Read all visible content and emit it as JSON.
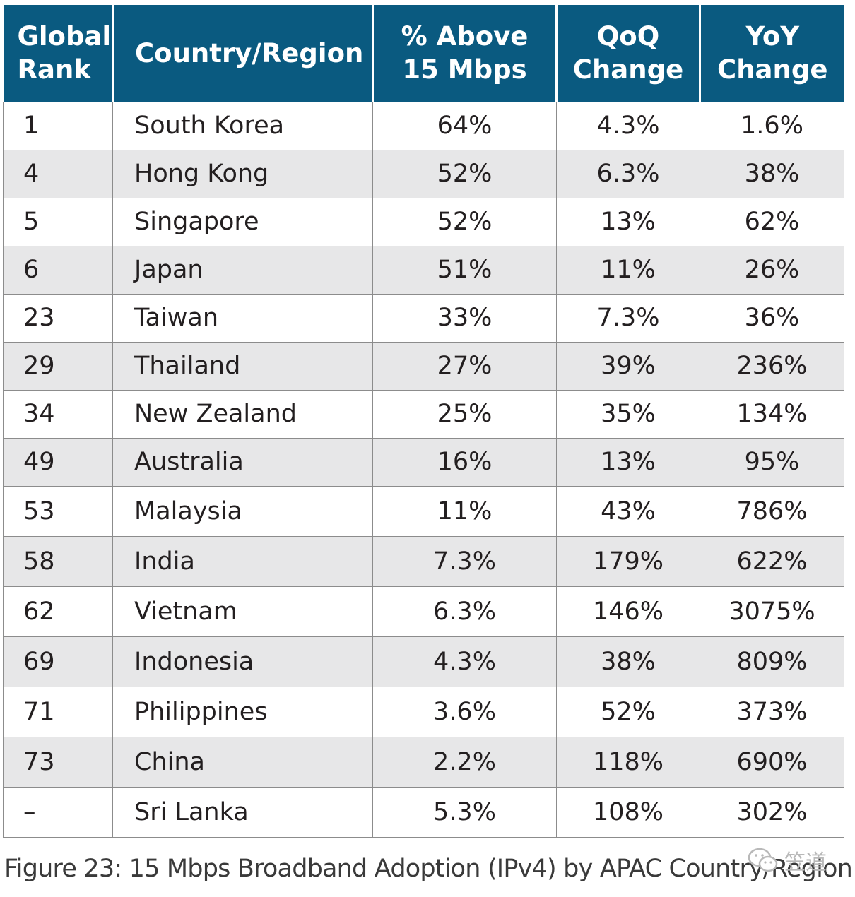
{
  "table": {
    "headers": [
      "Global\nRank",
      "Country/Region",
      "% Above\n15 Mbps",
      "QoQ\nChange",
      "YoY\nChange"
    ],
    "rows": [
      {
        "rank": "1",
        "country": "South Korea",
        "above15": "64%",
        "qoq": "4.3%",
        "yoy": "1.6%"
      },
      {
        "rank": "4",
        "country": "Hong Kong",
        "above15": "52%",
        "qoq": "6.3%",
        "yoy": "38%"
      },
      {
        "rank": "5",
        "country": "Singapore",
        "above15": "52%",
        "qoq": "13%",
        "yoy": "62%"
      },
      {
        "rank": "6",
        "country": "Japan",
        "above15": "51%",
        "qoq": "11%",
        "yoy": "26%"
      },
      {
        "rank": "23",
        "country": "Taiwan",
        "above15": "33%",
        "qoq": "7.3%",
        "yoy": "36%"
      },
      {
        "rank": "29",
        "country": "Thailand",
        "above15": "27%",
        "qoq": "39%",
        "yoy": "236%"
      },
      {
        "rank": "34",
        "country": "New Zealand",
        "above15": "25%",
        "qoq": "35%",
        "yoy": "134%"
      },
      {
        "rank": "49",
        "country": "Australia",
        "above15": "16%",
        "qoq": "13%",
        "yoy": "95%"
      },
      {
        "rank": "53",
        "country": "Malaysia",
        "above15": "11%",
        "qoq": "43%",
        "yoy": "786%"
      },
      {
        "rank": "58",
        "country": "India",
        "above15": "7.3%",
        "qoq": "179%",
        "yoy": "622%"
      },
      {
        "rank": "62",
        "country": "Vietnam",
        "above15": "6.3%",
        "qoq": "146%",
        "yoy": "3075%"
      },
      {
        "rank": "69",
        "country": "Indonesia",
        "above15": "4.3%",
        "qoq": "38%",
        "yoy": "809%"
      },
      {
        "rank": "71",
        "country": "Philippines",
        "above15": "3.6%",
        "qoq": "52%",
        "yoy": "373%"
      },
      {
        "rank": "73",
        "country": "China",
        "above15": "2.2%",
        "qoq": "118%",
        "yoy": "690%"
      },
      {
        "rank": "–",
        "country": "Sri Lanka",
        "above15": "5.3%",
        "qoq": "108%",
        "yoy": "302%"
      }
    ]
  },
  "caption": "Figure 23: 15 Mbps Broadband Adoption (IPv4) by APAC Country/Region",
  "watermark": {
    "icon": "wechat-icon",
    "text": "笠道"
  },
  "colors": {
    "header_bg": "#0a5a80",
    "header_text": "#ffffff",
    "stripe": "#e7e7e8"
  }
}
